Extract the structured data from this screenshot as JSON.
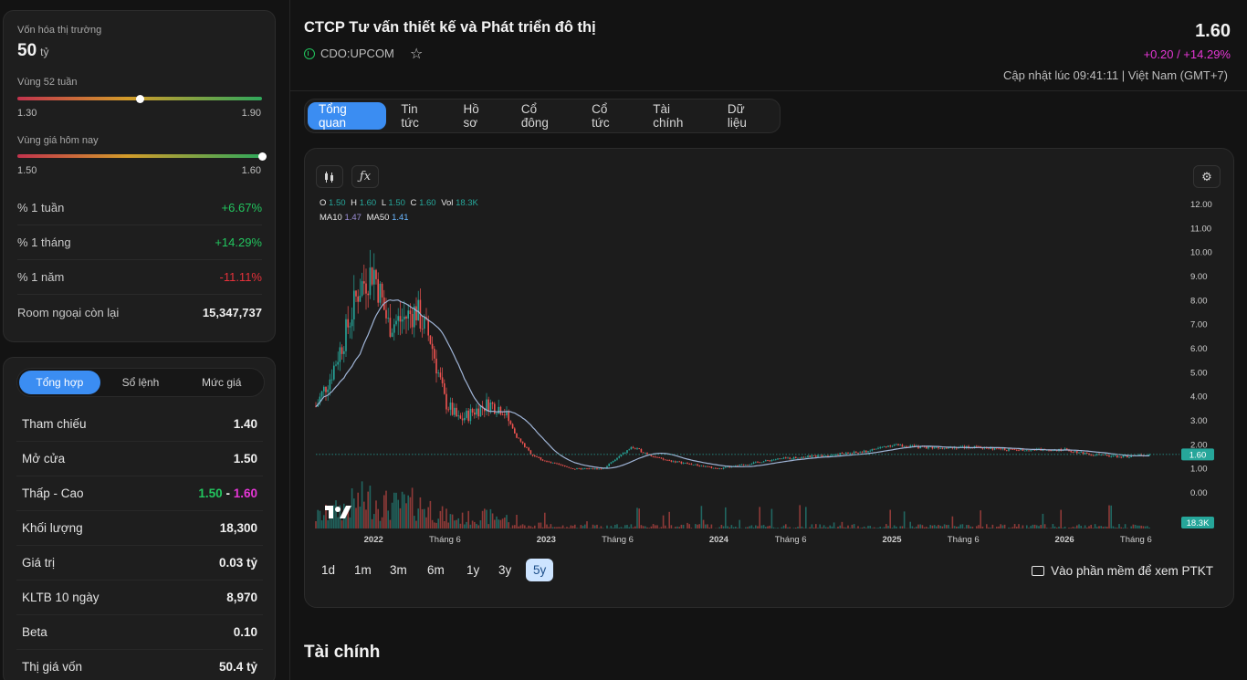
{
  "market": {
    "cap_label": "Vốn hóa thị trường",
    "cap_value": "50",
    "cap_unit": "tỷ",
    "range52_label": "Vùng 52 tuần",
    "range52_low": "1.30",
    "range52_high": "1.90",
    "range52_position": 0.5,
    "today_label": "Vùng giá hôm nay",
    "today_low": "1.50",
    "today_high": "1.60",
    "today_position": 1.0,
    "rows": [
      {
        "name": "% 1 tuần",
        "value": "+6.67%"
      },
      {
        "name": "% 1 tháng",
        "value": "+14.29%"
      },
      {
        "name": "% 1 năm",
        "value": "-11.11%"
      },
      {
        "name": "Room ngoại còn lại",
        "value": "15,347,737"
      }
    ]
  },
  "trade": {
    "tabs": [
      "Tổng hợp",
      "Sổ lệnh",
      "Mức giá"
    ],
    "rows": [
      {
        "name": "Tham chiếu",
        "value": "1.40"
      },
      {
        "name": "Mở cửa",
        "value": "1.50"
      },
      {
        "name": "Thấp - Cao",
        "low": "1.50",
        "sep": "-",
        "high": "1.60"
      },
      {
        "name": "Khối lượng",
        "value": "18,300"
      },
      {
        "name": "Giá trị",
        "value": "0.03 tỷ"
      },
      {
        "name": "KLTB 10 ngày",
        "value": "8,970"
      },
      {
        "name": "Beta",
        "value": "0.10"
      },
      {
        "name": "Thị giá vốn",
        "value": "50.4 tỷ"
      }
    ]
  },
  "header": {
    "company": "CTCP Tư vấn thiết kế và Phát triển đô thị",
    "ticker": "CDO:UPCOM",
    "price": "1.60",
    "change": "+0.20 / +14.29%",
    "updated": "Cập nhật lúc 09:41:11 | Việt Nam (GMT+7)"
  },
  "tabs": [
    "Tổng quan",
    "Tin tức",
    "Hồ sơ",
    "Cổ đông",
    "Cổ tức",
    "Tài chính",
    "Dữ liệu"
  ],
  "chart": {
    "ohlc": {
      "o_label": "O",
      "o": "1.50",
      "h_label": "H",
      "h": "1.60",
      "l_label": "L",
      "l": "1.50",
      "c_label": "C",
      "c": "1.60",
      "vol_label": "Vol",
      "vol": "18.3K"
    },
    "ma": {
      "ma10_label": "MA10",
      "ma10": "1.47",
      "ma50_label": "MA50",
      "ma50": "1.41"
    },
    "last_price_tag": "1.60",
    "volume_tag": "18.3K",
    "ranges": [
      "1d",
      "1m",
      "3m",
      "6m",
      "1y",
      "3y",
      "5y"
    ],
    "active_range": "5y",
    "ptkt_label": "Vào phần mềm để xem PTKT",
    "colors": {
      "up": "#26a69a",
      "down": "#ef5350",
      "ma": "#9fb4d6",
      "last": "#26a69a"
    }
  },
  "chart_data": {
    "type": "line",
    "y_ticks": [
      "12.00",
      "11.00",
      "10.00",
      "9.00",
      "8.00",
      "7.00",
      "6.00",
      "5.00",
      "4.00",
      "3.00",
      "2.00",
      "1.00",
      "0.00"
    ],
    "ylim": [
      0,
      12
    ],
    "x_ticks": [
      "2022",
      "Tháng 6",
      "2023",
      "Tháng 6",
      "2024",
      "Tháng 6",
      "2025",
      "Tháng 6",
      "2026",
      "Tháng 6"
    ],
    "series": [
      {
        "x": [
          "2021-09",
          "2021-10",
          "2021-11",
          "2021-12",
          "2022-01",
          "2022-02",
          "2022-03",
          "2022-04",
          "2022-05",
          "2022-06",
          "2022-07",
          "2022-08",
          "2022-09",
          "2022-10",
          "2022-11",
          "2022-12",
          "2023-01",
          "2023-03",
          "2023-05",
          "2023-07",
          "2023-09",
          "2023-11",
          "2024-01",
          "2024-03",
          "2024-05",
          "2024-07",
          "2024-09",
          "2024-11",
          "2025-01",
          "2025-03",
          "2025-05",
          "2025-07",
          "2025-09",
          "2025-11",
          "2026-01",
          "2026-03",
          "2026-05",
          "2026-07"
        ],
        "values": [
          3.6,
          4.8,
          6.5,
          8.5,
          9.3,
          7.0,
          7.2,
          7.6,
          6.4,
          3.8,
          3.0,
          3.4,
          3.7,
          3.5,
          2.3,
          1.6,
          1.3,
          1.0,
          1.0,
          1.9,
          1.4,
          1.2,
          1.0,
          1.2,
          1.4,
          1.5,
          1.6,
          1.7,
          2.0,
          1.9,
          1.9,
          1.9,
          1.8,
          1.8,
          1.8,
          1.6,
          1.5,
          1.6
        ]
      }
    ]
  },
  "finance": {
    "title": "Tài chính"
  }
}
